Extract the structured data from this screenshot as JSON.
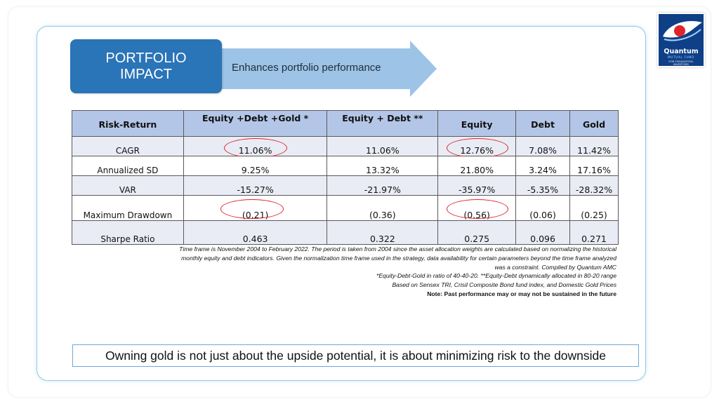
{
  "brand": {
    "name": "Quantum",
    "subtitle": "MUTUAL FUND",
    "tagline_line1": "FOR THOUGHTFUL",
    "tagline_line2": "INVESTORS",
    "colors": {
      "navy": "#0f3f86",
      "red": "#e0242a",
      "light_blue": "#9fd3ff"
    }
  },
  "header": {
    "box_line1": "PORTFOLIO",
    "box_line2": "IMPACT",
    "arrow_text": "Enhances portfolio performance",
    "box_color": "#2a74b8",
    "arrow_color": "#9dc3e6"
  },
  "table": {
    "headers": [
      "Risk-Return",
      "Equity +Debt  +Gold *",
      "Equity + Debt **",
      "Equity",
      "Debt",
      "Gold"
    ],
    "rows": [
      {
        "label": "CAGR",
        "values": [
          "11.06%",
          "11.06%",
          "12.76%",
          "7.08%",
          "11.42%"
        ]
      },
      {
        "label": "Annualized SD",
        "values": [
          "9.25%",
          "13.32%",
          "21.80%",
          "3.24%",
          "17.16%"
        ]
      },
      {
        "label": "VAR",
        "values": [
          "-15.27%",
          "-21.97%",
          "-35.97%",
          "-5.35%",
          "-28.32%"
        ]
      },
      {
        "label": "Maximum Drawdown",
        "values": [
          "(0.21)",
          "(0.36)",
          "(0.56)",
          "(0.06)",
          "(0.25)"
        ]
      },
      {
        "label": "Sharpe Ratio",
        "values": [
          "0.463",
          "0.322",
          "0.275",
          "0.096",
          "0.271"
        ]
      }
    ],
    "header_color": "#b4c6e7",
    "highlight_color": "#e0242a"
  },
  "notes": {
    "line1": "Time frame is November 2004 to February 2022. The period is taken from 2004 since the asset allocation weights are calculated based on normalizing the historical",
    "line2": "monthly equity and debt indicators. Given the normalization time frame used in the strategy, data availability for certain parameters beyond the time frame analyzed",
    "line3": "was a constraint.  Compiled by Quantum AMC",
    "line4": "*Equity-Debt-Gold in ratio of 40-40-20. **Equity-Debt dynamically allocated in  80-20 range",
    "line5": "Based on Sensex TRI, Crisil Composite Bond fund index, and Domestic Gold Prices",
    "line6": "Note: Past performance may or may not be sustained in the future"
  },
  "callout": "Owning gold is not just about the upside potential, it is about minimizing risk to the downside"
}
